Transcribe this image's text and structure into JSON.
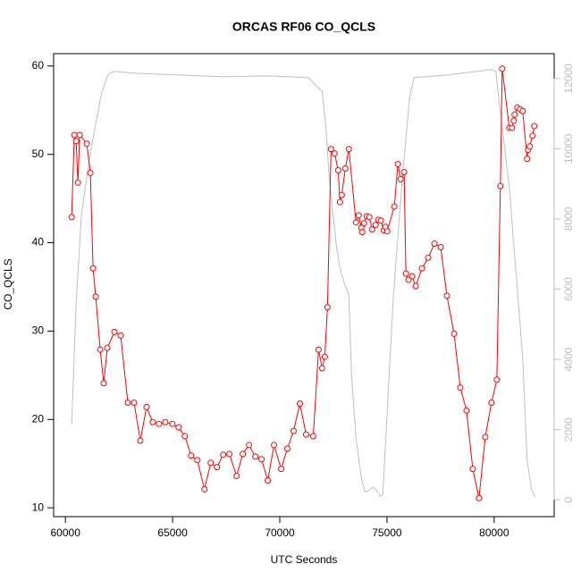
{
  "chart_data": {
    "type": "line",
    "title": "ORCAS RF06 CO_QCLS",
    "x_label": "UTC Seconds",
    "y_label": "CO_QCLS",
    "xlim": [
      59450,
      82800
    ],
    "ylim": [
      9.0,
      61.4
    ],
    "y2lim": [
      -480,
      12710
    ],
    "xticks": [
      60000,
      65000,
      70000,
      75000,
      80000
    ],
    "yticks": [
      10,
      20,
      30,
      40,
      50,
      60
    ],
    "y2ticks": [
      0,
      2000,
      4000,
      6000,
      8000,
      10000,
      12000
    ],
    "y2color": "#bebebe",
    "series": [
      {
        "color": "#bebebe",
        "axis": "y2",
        "marker": "none",
        "x": [
          60291,
          60499,
          60748,
          61164,
          61414,
          61705,
          62000,
          62245,
          63243,
          65322,
          67401,
          69480,
          71351,
          71767,
          71975,
          72141,
          72308,
          72640,
          72807,
          73056,
          73222,
          73347,
          73555,
          73805,
          73971,
          74137,
          74345,
          74511,
          74678,
          74802,
          74968,
          75301,
          75717,
          76050,
          76258,
          76757,
          77796,
          79875,
          80083,
          80166,
          80707,
          81331,
          81538,
          81746,
          81913
        ],
        "values": [
          2166,
          5580,
          8127,
          9860,
          10726,
          11618,
          12127,
          12204,
          12153,
          12102,
          12051,
          12076,
          12025,
          11745,
          11643,
          10675,
          9146,
          7236,
          6599,
          6089,
          5834,
          3541,
          1758,
          611,
          229,
          255,
          357,
          280,
          102,
          153,
          2013,
          5834,
          9146,
          11439,
          12025,
          12051,
          12102,
          12255,
          12204,
          11694,
          8892,
          4051,
          1121,
          280,
          76
        ]
      },
      {
        "color": "#ff0000",
        "axis": "y",
        "marker": "circle",
        "x": [
          60291,
          60416,
          60499,
          60582,
          60665,
          60998,
          61164,
          61289,
          61414,
          61622,
          61788,
          61954,
          62287,
          62578,
          62911,
          63202,
          63493,
          63784,
          64075,
          64366,
          64657,
          64990,
          65281,
          65572,
          65863,
          66154,
          66486,
          66778,
          67069,
          67360,
          67651,
          67983,
          68274,
          68565,
          68857,
          69148,
          69439,
          69730,
          70062,
          70353,
          70644,
          70936,
          71227,
          71559,
          71809,
          71975,
          72100,
          72225,
          72391,
          72557,
          72723,
          72807,
          72890,
          73056,
          73222,
          73555,
          73680,
          73805,
          73846,
          73929,
          74054,
          74179,
          74304,
          74470,
          74595,
          74719,
          74844,
          74927,
          75010,
          75343,
          75509,
          75634,
          75800,
          75884,
          76008,
          76175,
          76341,
          76632,
          76923,
          77214,
          77505,
          77796,
          78129,
          78420,
          78711,
          79002,
          79293,
          79584,
          79875,
          80125,
          80291,
          80374,
          80707,
          80832,
          80915,
          80956,
          81081,
          81206,
          81331,
          81538,
          81580,
          81663,
          81788,
          81871
        ],
        "values": [
          42.9,
          52.2,
          51.5,
          46.8,
          52.2,
          51.2,
          47.9,
          37.1,
          33.9,
          27.9,
          24.1,
          28.1,
          29.9,
          29.5,
          21.9,
          21.9,
          17.6,
          21.4,
          19.7,
          19.5,
          19.7,
          19.5,
          19.1,
          18.1,
          15.9,
          15.4,
          12.1,
          15.1,
          14.6,
          16.0,
          16.1,
          13.6,
          16.1,
          17.1,
          15.8,
          15.5,
          13.1,
          17.1,
          14.4,
          16.7,
          18.7,
          21.8,
          18.3,
          18.1,
          27.9,
          25.8,
          27.1,
          32.7,
          50.6,
          50.1,
          48.2,
          44.6,
          45.4,
          48.4,
          50.6,
          42.3,
          43.1,
          41.7,
          41.2,
          42.2,
          43.0,
          42.9,
          41.5,
          42.0,
          42.6,
          42.5,
          41.4,
          41.8,
          41.3,
          44.1,
          48.9,
          47.2,
          48.0,
          36.5,
          35.8,
          36.2,
          35.1,
          37.1,
          38.3,
          39.9,
          39.5,
          34.0,
          29.7,
          23.6,
          21.0,
          14.4,
          11.1,
          18.0,
          21.9,
          24.5,
          46.4,
          59.7,
          53.0,
          53.0,
          53.8,
          54.5,
          55.3,
          55.1,
          54.9,
          49.5,
          50.5,
          50.9,
          52.1,
          53.2
        ]
      }
    ]
  }
}
